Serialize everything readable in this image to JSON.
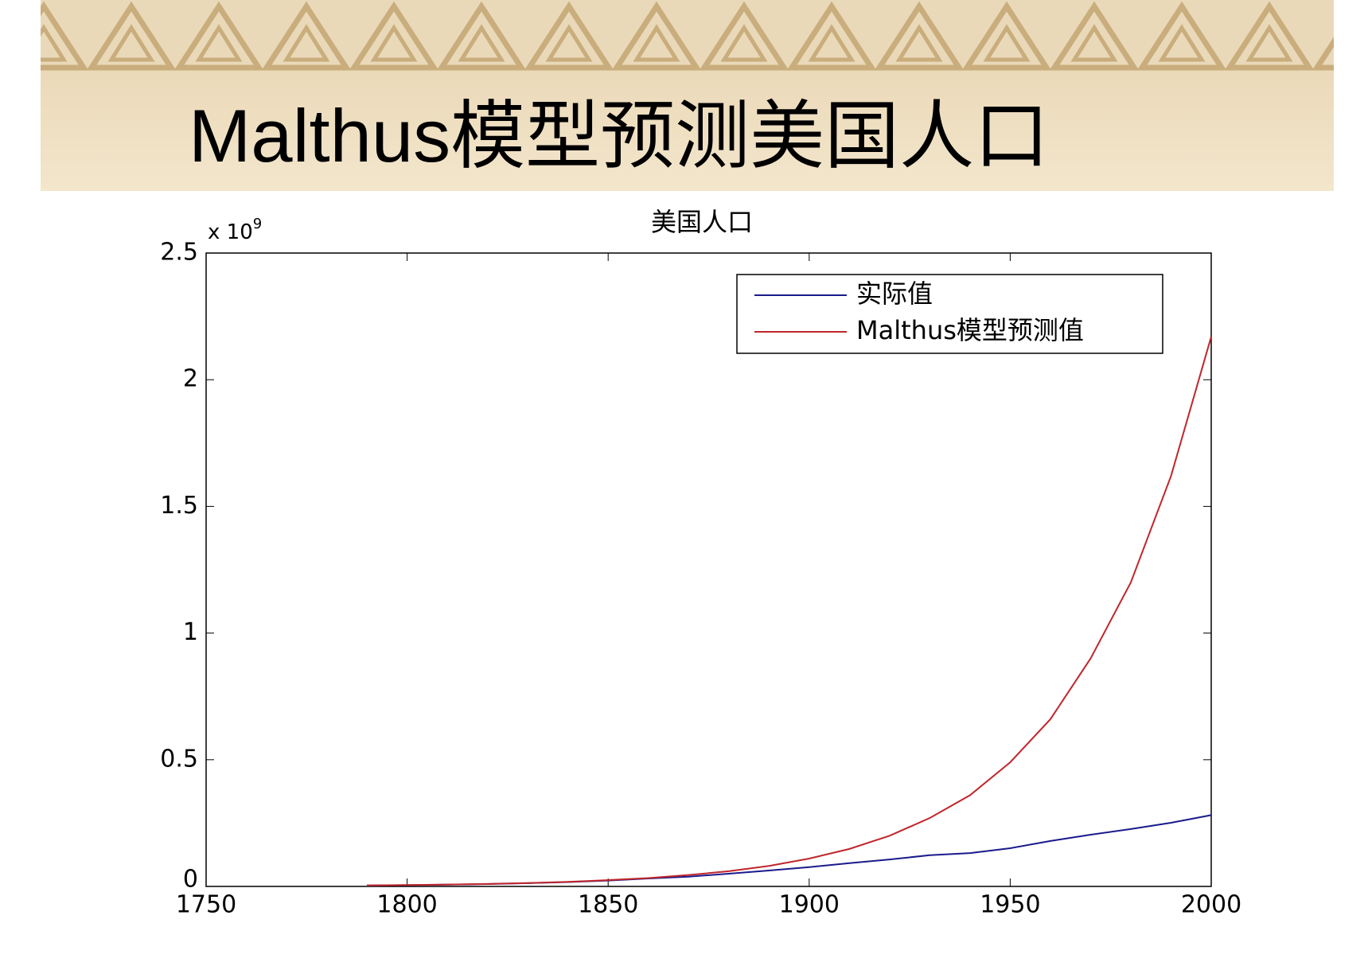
{
  "slide": {
    "title": "Malthus模型预测美国人口"
  },
  "chart_data": {
    "type": "line",
    "title": "美国人口",
    "y_multiplier": {
      "base": "x 10",
      "exponent": "9"
    },
    "x": [
      1790,
      1800,
      1810,
      1820,
      1830,
      1840,
      1850,
      1860,
      1870,
      1880,
      1890,
      1900,
      1910,
      1920,
      1930,
      1940,
      1950,
      1960,
      1970,
      1980,
      1990,
      2000
    ],
    "series": [
      {
        "name": "实际值",
        "color": "#1a1a8c",
        "values": [
          0.0039,
          0.0053,
          0.0072,
          0.0096,
          0.0129,
          0.0171,
          0.0232,
          0.0314,
          0.0386,
          0.0502,
          0.0629,
          0.076,
          0.092,
          0.1065,
          0.1232,
          0.1317,
          0.1507,
          0.1793,
          0.204,
          0.2265,
          0.2514,
          0.2814
        ]
      },
      {
        "name": "Malthus模型预测值",
        "color": "#c0262b",
        "values": [
          0.0041,
          0.0055,
          0.0074,
          0.01,
          0.0135,
          0.018,
          0.025,
          0.033,
          0.045,
          0.06,
          0.081,
          0.11,
          0.148,
          0.2,
          0.27,
          0.36,
          0.49,
          0.66,
          0.9,
          1.2,
          1.62,
          2.17
        ]
      }
    ],
    "xlim": [
      1750,
      2000
    ],
    "xticks": [
      1750,
      1800,
      1850,
      1900,
      1950,
      2000
    ],
    "ylim": [
      0,
      2.5
    ],
    "yticks": [
      0,
      0.5,
      1,
      1.5,
      2,
      2.5
    ],
    "legend": "northeast",
    "grid": false
  }
}
